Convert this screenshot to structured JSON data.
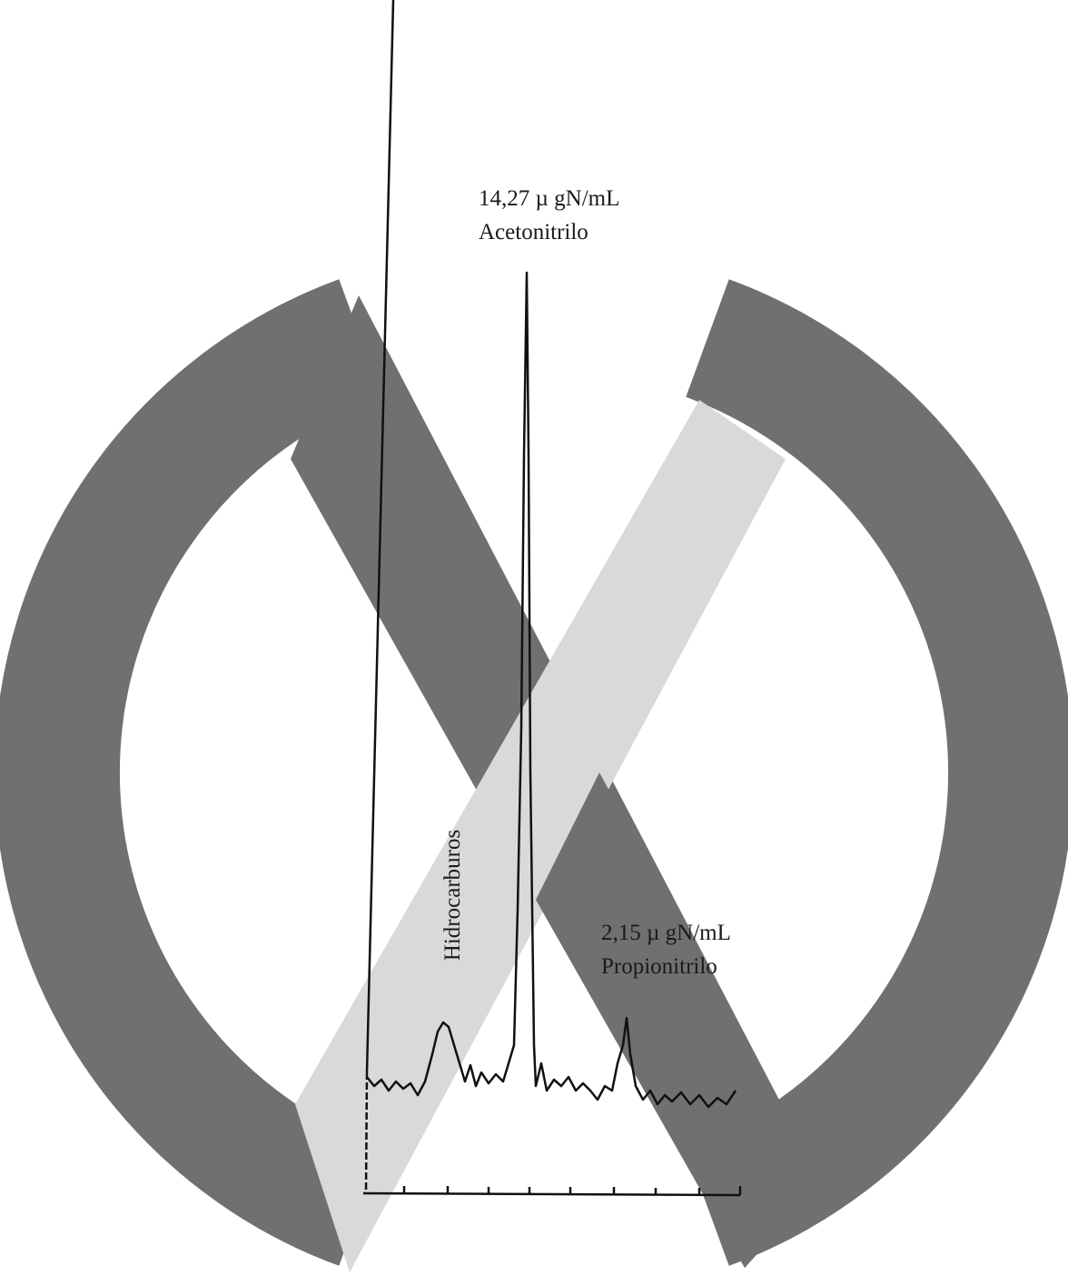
{
  "annotations": {
    "acetonitrile_concentration": "14,27 µ gN/mL",
    "acetonitrile_label": "Acetonitrilo",
    "hydrocarbons_label": "Hidrocarburos",
    "propionitrile_concentration": "2,15 µ gN/mL",
    "propionitrile_label": "Propionitrilo"
  }
}
